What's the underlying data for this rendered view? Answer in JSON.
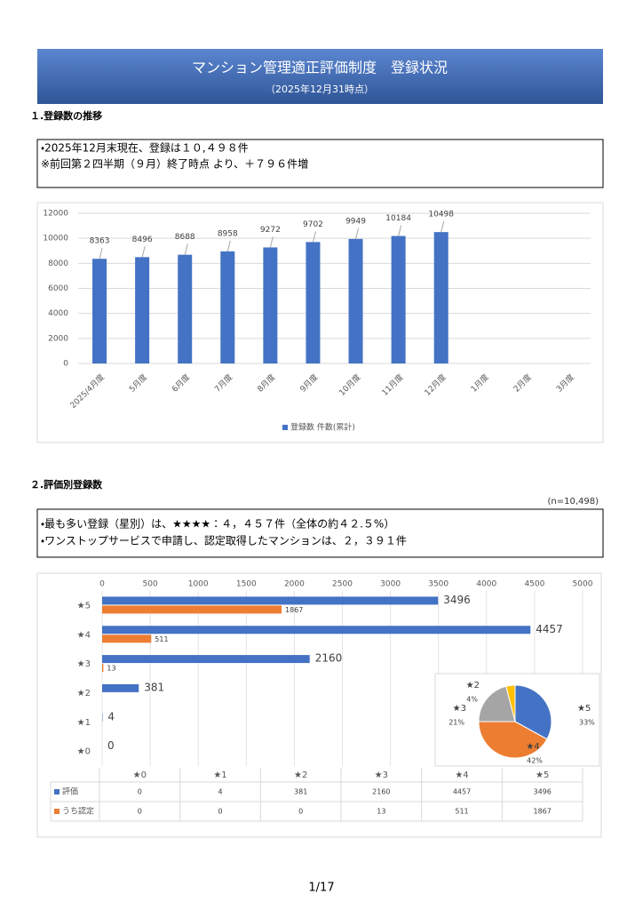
{
  "header": {
    "title": "マンション管理適正評価制度　登録状況",
    "subtitle": "（2025年12月31時点）"
  },
  "sections": [
    {
      "heading": "１.登録数の推移",
      "notes": [
        "・2025年12月末現在、登録は１０,４９８件",
        "※前回第２四半期（９月）終了時点 より、＋７９６件増"
      ]
    },
    {
      "heading": "２.評価別登録数",
      "sample": "(n=10,498)",
      "notes": [
        "・最も多い登録（星別）は、★★★★：４，４５７件（全体の約４２.５%）",
        "・ワンストップサービスで申請し、認定取得したマンションは、２，３９１件"
      ]
    }
  ],
  "chart_data": [
    {
      "type": "bar",
      "categories": [
        "2025/4月度",
        "5月度",
        "6月度",
        "7月度",
        "8月度",
        "9月度",
        "10月度",
        "11月度",
        "12月度",
        "1月度",
        "2月度",
        "3月度"
      ],
      "series": [
        {
          "name": "登録数 件数(累計)",
          "color": "#4472c4",
          "values": [
            8363,
            8496,
            8688,
            8958,
            9272,
            9702,
            9949,
            10184,
            10498,
            null,
            null,
            null
          ]
        }
      ],
      "ylim": [
        0,
        12000
      ],
      "yticks": [
        0,
        2000,
        4000,
        6000,
        8000,
        10000,
        12000
      ],
      "grid": true,
      "legend": "bottom"
    },
    {
      "type": "barh",
      "categories": [
        "★0",
        "★1",
        "★2",
        "★3",
        "★4",
        "★5"
      ],
      "series": [
        {
          "name": "評価",
          "color": "#4472c4",
          "values": [
            0,
            4,
            381,
            2160,
            4457,
            3496
          ]
        },
        {
          "name": "うち認定",
          "color": "#ed7d31",
          "values": [
            0,
            0,
            0,
            13,
            511,
            1867
          ]
        }
      ],
      "xlim": [
        0,
        5000
      ],
      "xticks": [
        0,
        500,
        1000,
        1500,
        2000,
        2500,
        3000,
        3500,
        4000,
        4500,
        5000
      ],
      "grid": true,
      "data_table": true
    },
    {
      "type": "pie",
      "categories": [
        "★5",
        "★4",
        "★3",
        "★2"
      ],
      "values": [
        33,
        42,
        21,
        4
      ],
      "value_labels": [
        "33%",
        "42%",
        "21%",
        "4%"
      ],
      "colors": [
        "#4472c4",
        "#ed7d31",
        "#a5a5a5",
        "#ffc000"
      ]
    }
  ],
  "footer": {
    "page": "1/17"
  }
}
